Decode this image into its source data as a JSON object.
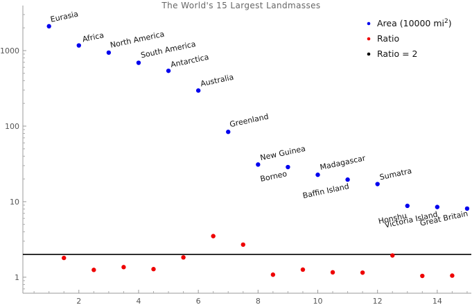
{
  "chart_data": {
    "type": "scatter",
    "title": "The World's 15 Largest Landmasses",
    "xlabel": "",
    "ylabel": "",
    "yscale": "log",
    "xlim": [
      0.2,
      15.3
    ],
    "ylim": [
      0.7,
      3500
    ],
    "x_ticks": [
      2,
      4,
      6,
      8,
      10,
      12,
      14
    ],
    "y_ticks": [
      {
        "value": 1,
        "label": "1"
      },
      {
        "value": 10,
        "label": "10"
      },
      {
        "value": 100,
        "label": "100"
      },
      {
        "value": 1000,
        "label": "1000"
      }
    ],
    "grid": false,
    "legend_position": "top-right",
    "series": [
      {
        "name": "Area (10000 mi2)",
        "color": "#0000ee",
        "points": [
          {
            "x": 1,
            "y": 2100,
            "label": "Eurasia"
          },
          {
            "x": 2,
            "y": 1170,
            "label": "Africa"
          },
          {
            "x": 3,
            "y": 940,
            "label": "North America"
          },
          {
            "x": 4,
            "y": 690,
            "label": "South America"
          },
          {
            "x": 5,
            "y": 540,
            "label": "Antarctica"
          },
          {
            "x": 6,
            "y": 296,
            "label": "Australia"
          },
          {
            "x": 7,
            "y": 84,
            "label": "Greenland"
          },
          {
            "x": 8,
            "y": 31,
            "label": "New Guinea"
          },
          {
            "x": 9,
            "y": 28.7,
            "label": "Borneo"
          },
          {
            "x": 10,
            "y": 22.7,
            "label": "Madagascar"
          },
          {
            "x": 11,
            "y": 19.6,
            "label": "Baffin Island"
          },
          {
            "x": 12,
            "y": 17.1,
            "label": "Sumatra"
          },
          {
            "x": 13,
            "y": 8.8,
            "label": "Honshu"
          },
          {
            "x": 14,
            "y": 8.5,
            "label": "Victoria Island"
          },
          {
            "x": 15,
            "y": 8.1,
            "label": "Great Britain"
          }
        ]
      },
      {
        "name": "Ratio",
        "color": "#ee0000",
        "points": [
          {
            "x": 1.5,
            "y": 1.8
          },
          {
            "x": 2.5,
            "y": 1.25
          },
          {
            "x": 3.5,
            "y": 1.36
          },
          {
            "x": 4.5,
            "y": 1.28
          },
          {
            "x": 5.5,
            "y": 1.83
          },
          {
            "x": 6.5,
            "y": 3.5
          },
          {
            "x": 7.5,
            "y": 2.7
          },
          {
            "x": 8.5,
            "y": 1.08
          },
          {
            "x": 9.5,
            "y": 1.26
          },
          {
            "x": 10.5,
            "y": 1.16
          },
          {
            "x": 11.5,
            "y": 1.15
          },
          {
            "x": 12.5,
            "y": 1.94
          },
          {
            "x": 13.5,
            "y": 1.04
          },
          {
            "x": 14.5,
            "y": 1.05
          }
        ]
      },
      {
        "name": "Ratio = 2",
        "color": "#000000",
        "type": "hline",
        "y": 2
      }
    ],
    "legend": [
      {
        "label": "Area (10000 mi",
        "sup": "2",
        "suffix": ")",
        "color": "#0000ee"
      },
      {
        "label": "Ratio",
        "sup": "",
        "suffix": "",
        "color": "#ee0000"
      },
      {
        "label": "Ratio = 2",
        "sup": "",
        "suffix": "",
        "color": "#000000"
      }
    ]
  }
}
